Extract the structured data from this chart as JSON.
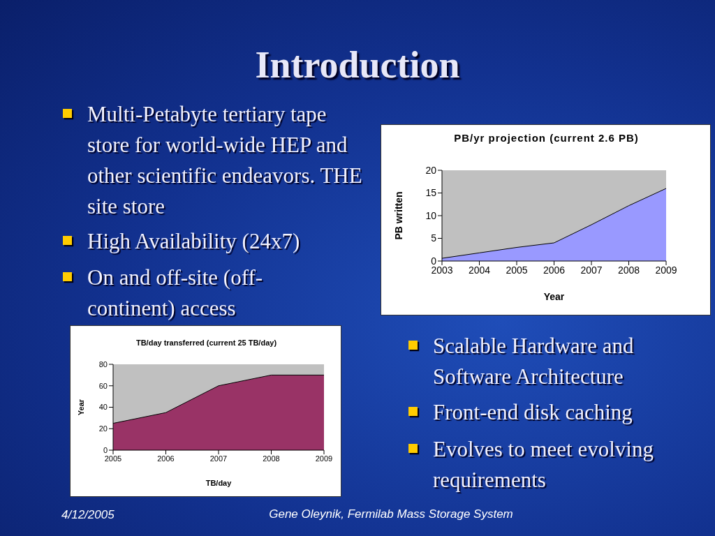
{
  "chart_data": [
    {
      "type": "other",
      "title": "Introduction",
      "annotations": [
        "Multi-Petabyte tertiary tape store for world-wide HEP and other scientific endeavors. THE site store",
        "High Availability (24x7)",
        "On and off-site  (off-continent) access",
        "Scalable Hardware and Software Architecture",
        "Front-end disk caching",
        "Evolves to meet evolving requirements",
        "4/12/2005",
        "Gene Oleynik, Fermilab Mass Storage System"
      ]
    },
    {
      "type": "area",
      "title": "PB/yr projection (current 2.6 PB)",
      "xlabel": "Year",
      "ylabel": "PB written",
      "categories": [
        "2003",
        "2004",
        "2005",
        "2006",
        "2007",
        "2008",
        "2009"
      ],
      "values": [
        0.6,
        1.8,
        3,
        4,
        8,
        12.2,
        16
      ],
      "color": "#9999ff",
      "ylim": [
        0,
        20
      ],
      "yticks": [
        0,
        5,
        10,
        15,
        20
      ]
    },
    {
      "type": "area",
      "title": "TB/day transferred (current 25 TB/day)",
      "xlabel": "TB/day",
      "ylabel": "Year",
      "categories": [
        "2005",
        "2006",
        "2007",
        "2008",
        "2009"
      ],
      "values": [
        25,
        35,
        60,
        70,
        70
      ],
      "color": "#993366",
      "ylim": [
        0,
        80
      ],
      "yticks": [
        0,
        20,
        40,
        60,
        80
      ]
    }
  ]
}
